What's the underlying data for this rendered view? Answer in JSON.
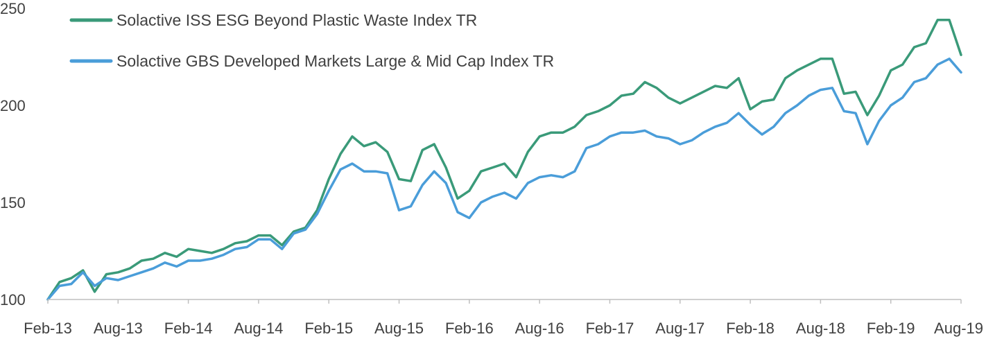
{
  "chart_data": {
    "type": "line",
    "title": "",
    "xlabel": "",
    "ylabel": "",
    "ylim": [
      100,
      250
    ],
    "y_ticks": [
      100,
      150,
      200,
      250
    ],
    "x_tick_labels": [
      "Feb-13",
      "Aug-13",
      "Feb-14",
      "Aug-14",
      "Feb-15",
      "Aug-15",
      "Feb-16",
      "Aug-16",
      "Feb-17",
      "Aug-17",
      "Feb-18",
      "Aug-18",
      "Feb-19",
      "Aug-19"
    ],
    "grid": false,
    "legend_position": "top-left",
    "series": [
      {
        "name": "Solactive ISS ESG Beyond Plastic Waste Index TR",
        "color": "#3a9a79",
        "points": [
          [
            "Feb-13",
            100
          ],
          [
            "Mar-13",
            109
          ],
          [
            "Apr-13",
            111
          ],
          [
            "May-13",
            115
          ],
          [
            "Jun-13",
            104
          ],
          [
            "Jul-13",
            113
          ],
          [
            "Aug-13",
            114
          ],
          [
            "Sep-13",
            116
          ],
          [
            "Oct-13",
            120
          ],
          [
            "Nov-13",
            121
          ],
          [
            "Dec-13",
            124
          ],
          [
            "Jan-14",
            122
          ],
          [
            "Feb-14",
            126
          ],
          [
            "Mar-14",
            125
          ],
          [
            "Apr-14",
            124
          ],
          [
            "May-14",
            126
          ],
          [
            "Jun-14",
            129
          ],
          [
            "Jul-14",
            130
          ],
          [
            "Aug-14",
            133
          ],
          [
            "Sep-14",
            133
          ],
          [
            "Oct-14",
            128
          ],
          [
            "Nov-14",
            135
          ],
          [
            "Dec-14",
            137
          ],
          [
            "Jan-15",
            146
          ],
          [
            "Feb-15",
            162
          ],
          [
            "Mar-15",
            175
          ],
          [
            "Apr-15",
            184
          ],
          [
            "May-15",
            179
          ],
          [
            "Jun-15",
            181
          ],
          [
            "Jul-15",
            176
          ],
          [
            "Aug-15",
            162
          ],
          [
            "Sep-15",
            161
          ],
          [
            "Oct-15",
            177
          ],
          [
            "Nov-15",
            180
          ],
          [
            "Dec-15",
            168
          ],
          [
            "Jan-16",
            152
          ],
          [
            "Feb-16",
            156
          ],
          [
            "Mar-16",
            166
          ],
          [
            "Apr-16",
            168
          ],
          [
            "May-16",
            170
          ],
          [
            "Jun-16",
            163
          ],
          [
            "Jul-16",
            176
          ],
          [
            "Aug-16",
            184
          ],
          [
            "Sep-16",
            186
          ],
          [
            "Oct-16",
            186
          ],
          [
            "Nov-16",
            189
          ],
          [
            "Dec-16",
            195
          ],
          [
            "Jan-17",
            197
          ],
          [
            "Feb-17",
            200
          ],
          [
            "Mar-17",
            205
          ],
          [
            "Apr-17",
            206
          ],
          [
            "May-17",
            212
          ],
          [
            "Jun-17",
            209
          ],
          [
            "Jul-17",
            204
          ],
          [
            "Aug-17",
            201
          ],
          [
            "Sep-17",
            204
          ],
          [
            "Oct-17",
            207
          ],
          [
            "Nov-17",
            210
          ],
          [
            "Dec-17",
            209
          ],
          [
            "Jan-18",
            214
          ],
          [
            "Feb-18",
            198
          ],
          [
            "Mar-18",
            202
          ],
          [
            "Apr-18",
            203
          ],
          [
            "May-18",
            214
          ],
          [
            "Jun-18",
            218
          ],
          [
            "Jul-18",
            221
          ],
          [
            "Aug-18",
            224
          ],
          [
            "Sep-18",
            224
          ],
          [
            "Oct-18",
            206
          ],
          [
            "Nov-18",
            207
          ],
          [
            "Dec-18",
            195
          ],
          [
            "Jan-19",
            205
          ],
          [
            "Feb-19",
            218
          ],
          [
            "Mar-19",
            221
          ],
          [
            "Apr-19",
            230
          ],
          [
            "May-19",
            232
          ],
          [
            "Jun-19",
            244
          ],
          [
            "Jul-19",
            244
          ],
          [
            "Aug-19",
            226
          ]
        ]
      },
      {
        "name": "Solactive GBS Developed Markets Large & Mid Cap Index TR",
        "color": "#4a9dd9",
        "points": [
          [
            "Feb-13",
            100
          ],
          [
            "Mar-13",
            107
          ],
          [
            "Apr-13",
            108
          ],
          [
            "May-13",
            114
          ],
          [
            "Jun-13",
            107
          ],
          [
            "Jul-13",
            111
          ],
          [
            "Aug-13",
            110
          ],
          [
            "Sep-13",
            112
          ],
          [
            "Oct-13",
            114
          ],
          [
            "Nov-13",
            116
          ],
          [
            "Dec-13",
            119
          ],
          [
            "Jan-14",
            117
          ],
          [
            "Feb-14",
            120
          ],
          [
            "Mar-14",
            120
          ],
          [
            "Apr-14",
            121
          ],
          [
            "May-14",
            123
          ],
          [
            "Jun-14",
            126
          ],
          [
            "Jul-14",
            127
          ],
          [
            "Aug-14",
            131
          ],
          [
            "Sep-14",
            131
          ],
          [
            "Oct-14",
            126
          ],
          [
            "Nov-14",
            134
          ],
          [
            "Dec-14",
            136
          ],
          [
            "Jan-15",
            144
          ],
          [
            "Feb-15",
            156
          ],
          [
            "Mar-15",
            167
          ],
          [
            "Apr-15",
            170
          ],
          [
            "May-15",
            166
          ],
          [
            "Jun-15",
            166
          ],
          [
            "Jul-15",
            165
          ],
          [
            "Aug-15",
            146
          ],
          [
            "Sep-15",
            148
          ],
          [
            "Oct-15",
            159
          ],
          [
            "Nov-15",
            166
          ],
          [
            "Dec-15",
            160
          ],
          [
            "Jan-16",
            145
          ],
          [
            "Feb-16",
            142
          ],
          [
            "Mar-16",
            150
          ],
          [
            "Apr-16",
            153
          ],
          [
            "May-16",
            155
          ],
          [
            "Jun-16",
            152
          ],
          [
            "Jul-16",
            160
          ],
          [
            "Aug-16",
            163
          ],
          [
            "Sep-16",
            164
          ],
          [
            "Oct-16",
            163
          ],
          [
            "Nov-16",
            166
          ],
          [
            "Dec-16",
            178
          ],
          [
            "Jan-17",
            180
          ],
          [
            "Feb-17",
            184
          ],
          [
            "Mar-17",
            186
          ],
          [
            "Apr-17",
            186
          ],
          [
            "May-17",
            187
          ],
          [
            "Jun-17",
            184
          ],
          [
            "Jul-17",
            183
          ],
          [
            "Aug-17",
            180
          ],
          [
            "Sep-17",
            182
          ],
          [
            "Oct-17",
            186
          ],
          [
            "Nov-17",
            189
          ],
          [
            "Dec-17",
            191
          ],
          [
            "Jan-18",
            196
          ],
          [
            "Feb-18",
            190
          ],
          [
            "Mar-18",
            185
          ],
          [
            "Apr-18",
            189
          ],
          [
            "May-18",
            196
          ],
          [
            "Jun-18",
            200
          ],
          [
            "Jul-18",
            205
          ],
          [
            "Aug-18",
            208
          ],
          [
            "Sep-18",
            209
          ],
          [
            "Oct-18",
            197
          ],
          [
            "Nov-18",
            196
          ],
          [
            "Dec-18",
            180
          ],
          [
            "Jan-19",
            192
          ],
          [
            "Feb-19",
            200
          ],
          [
            "Mar-19",
            204
          ],
          [
            "Apr-19",
            212
          ],
          [
            "May-19",
            214
          ],
          [
            "Jun-19",
            221
          ],
          [
            "Jul-19",
            224
          ],
          [
            "Aug-19",
            217
          ]
        ]
      }
    ]
  }
}
